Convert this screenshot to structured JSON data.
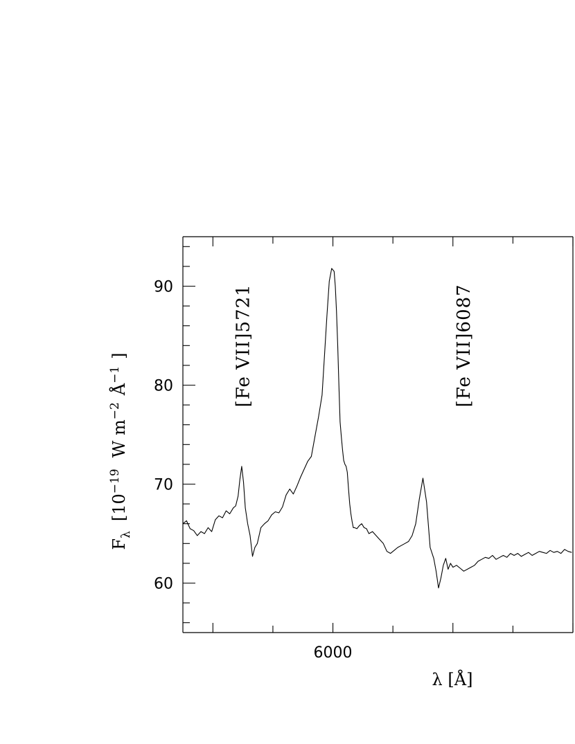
{
  "chart_data": {
    "type": "line",
    "xlabel": "λ  [Å]",
    "ylabel": "F",
    "ylabel_sub": "λ",
    "ylabel_units": "[10",
    "ylabel_exp1": "−19",
    "ylabel_mid": "W  m",
    "ylabel_exp2": "−2",
    "ylabel_mid2": "Å",
    "ylabel_exp3": "−1",
    "ylabel_end": "]",
    "xlim": [
      5750,
      6400
    ],
    "ylim": [
      55,
      95
    ],
    "x_ticks_major": [
      5800,
      5900,
      6000,
      6100,
      6200,
      6300,
      6400
    ],
    "x_tick_labels": [
      {
        "x": 6000,
        "label": "6000"
      }
    ],
    "y_ticks_major": [
      60,
      70,
      80,
      90
    ],
    "y_ticks_minor": [
      56,
      58,
      62,
      64,
      66,
      68,
      72,
      74,
      76,
      78,
      82,
      84,
      86,
      88,
      92,
      94
    ],
    "y_tick_labels": [
      "60",
      "70",
      "80",
      "90"
    ],
    "annotations": [
      {
        "text": "[Fe VII]5721",
        "x": 5860,
        "y": 84
      },
      {
        "text": "[Fe VII]6087",
        "x": 6228,
        "y": 84
      }
    ],
    "series": [
      {
        "x": [
          5750,
          5756,
          5762,
          5768,
          5774,
          5780,
          5786,
          5792,
          5798,
          5804,
          5810,
          5816,
          5822,
          5828,
          5834,
          5838,
          5842,
          5845,
          5848,
          5851,
          5854,
          5858,
          5862,
          5866,
          5870,
          5874,
          5880,
          5886,
          5892,
          5898,
          5904,
          5910,
          5916,
          5922,
          5928,
          5934,
          5940,
          5946,
          5952,
          5958,
          5964,
          5970,
          5976,
          5982,
          5986,
          5990,
          5994,
          5998,
          6002,
          6004,
          6006,
          6008,
          6010,
          6012,
          6014,
          6016,
          6018,
          6020,
          6022,
          6024,
          6026,
          6028,
          6030,
          6032,
          6034,
          6036,
          6040,
          6044,
          6048,
          6052,
          6056,
          6060,
          6066,
          6072,
          6078,
          6084,
          6090,
          6096,
          6102,
          6108,
          6114,
          6120,
          6126,
          6132,
          6138,
          6144,
          6150,
          6156,
          6162,
          6168,
          6172,
          6176,
          6180,
          6184,
          6188,
          6192,
          6196,
          6200,
          6206,
          6212,
          6218,
          6224,
          6230,
          6236,
          6242,
          6248,
          6254,
          6260,
          6266,
          6272,
          6278,
          6284,
          6290,
          6296,
          6302,
          6308,
          6314,
          6320,
          6326,
          6332,
          6338,
          6344,
          6350,
          6356,
          6362,
          6368,
          6374,
          6380,
          6386,
          6392,
          6398
        ],
        "y": [
          66.0,
          66.3,
          65.5,
          65.3,
          64.8,
          65.2,
          65.0,
          65.6,
          65.2,
          66.4,
          66.8,
          66.6,
          67.3,
          67.0,
          67.6,
          67.8,
          68.8,
          70.5,
          71.8,
          70.2,
          67.6,
          66.0,
          64.8,
          62.7,
          63.6,
          64.0,
          65.6,
          66.0,
          66.3,
          66.9,
          67.2,
          67.1,
          67.7,
          68.9,
          69.5,
          69.0,
          69.8,
          70.7,
          71.5,
          72.3,
          72.8,
          74.8,
          76.8,
          79.0,
          83.0,
          87.0,
          90.5,
          91.8,
          91.5,
          90.0,
          87.5,
          84.0,
          80.0,
          76.3,
          74.8,
          73.5,
          72.4,
          72.0,
          71.8,
          71.2,
          69.5,
          68.0,
          67.0,
          66.2,
          65.6,
          65.6,
          65.5,
          65.8,
          66.0,
          65.6,
          65.5,
          65.0,
          65.2,
          64.8,
          64.4,
          64.0,
          63.2,
          63.0,
          63.3,
          63.6,
          63.8,
          64.0,
          64.2,
          64.8,
          66.0,
          68.5,
          70.6,
          68.2,
          63.6,
          62.5,
          61.2,
          59.5,
          60.5,
          61.8,
          62.5,
          61.4,
          62.0,
          61.6,
          61.8,
          61.5,
          61.2,
          61.4,
          61.6,
          61.8,
          62.2,
          62.4,
          62.6,
          62.5,
          62.8,
          62.4,
          62.6,
          62.8,
          62.6,
          63.0,
          62.8,
          63.0,
          62.7,
          62.9,
          63.1,
          62.8,
          63.0,
          63.2,
          63.1,
          63.0,
          63.3,
          63.1,
          63.2,
          63.0,
          63.4,
          63.2,
          63.1
        ]
      }
    ]
  }
}
